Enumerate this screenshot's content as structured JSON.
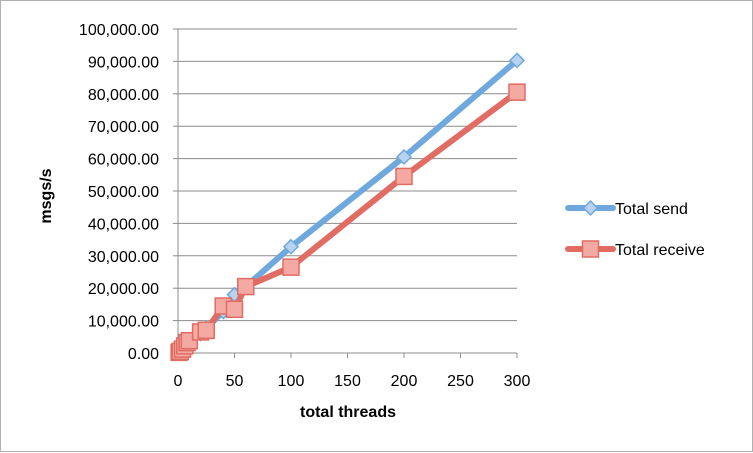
{
  "chart_data": {
    "type": "line",
    "xlabel": "total threads",
    "ylabel": "msgs/s",
    "xlim": [
      0,
      300
    ],
    "ylim": [
      0,
      100000
    ],
    "x_ticks": [
      0,
      50,
      100,
      150,
      200,
      250,
      300
    ],
    "x_tick_labels": [
      "0",
      "50",
      "100",
      "150",
      "200",
      "250",
      "300"
    ],
    "y_ticks": [
      0,
      10000,
      20000,
      30000,
      40000,
      50000,
      60000,
      70000,
      80000,
      90000,
      100000
    ],
    "y_tick_labels": [
      "0.00",
      "10,000.00",
      "20,000.00",
      "30,000.00",
      "40,000.00",
      "50,000.00",
      "60,000.00",
      "70,000.00",
      "80,000.00",
      "90,000.00",
      "100,000.00"
    ],
    "grid": "horizontal",
    "legend_position": "right",
    "series": [
      {
        "name": "Total send",
        "color": "#6fa8dc",
        "marker_fill": "#b7d3f0",
        "marker": "diamond",
        "points": [
          [
            1,
            300
          ],
          [
            2,
            600
          ],
          [
            4,
            1200
          ],
          [
            6,
            1800
          ],
          [
            8,
            2400
          ],
          [
            10,
            3000
          ],
          [
            20,
            6000
          ],
          [
            25,
            7600
          ],
          [
            40,
            12800
          ],
          [
            50,
            18000
          ],
          [
            60,
            20500
          ],
          [
            100,
            32800
          ],
          [
            200,
            60500
          ],
          [
            300,
            90300
          ]
        ]
      },
      {
        "name": "Total receive",
        "color": "#e06c63",
        "marker_fill": "#f4a9a3",
        "marker": "square",
        "points": [
          [
            1,
            200
          ],
          [
            2,
            500
          ],
          [
            4,
            1200
          ],
          [
            6,
            2200
          ],
          [
            8,
            3200
          ],
          [
            10,
            3800
          ],
          [
            20,
            6500
          ],
          [
            25,
            7000
          ],
          [
            40,
            14500
          ],
          [
            50,
            13500
          ],
          [
            60,
            20500
          ],
          [
            100,
            26500
          ],
          [
            200,
            54500
          ],
          [
            300,
            80500
          ]
        ]
      }
    ]
  }
}
